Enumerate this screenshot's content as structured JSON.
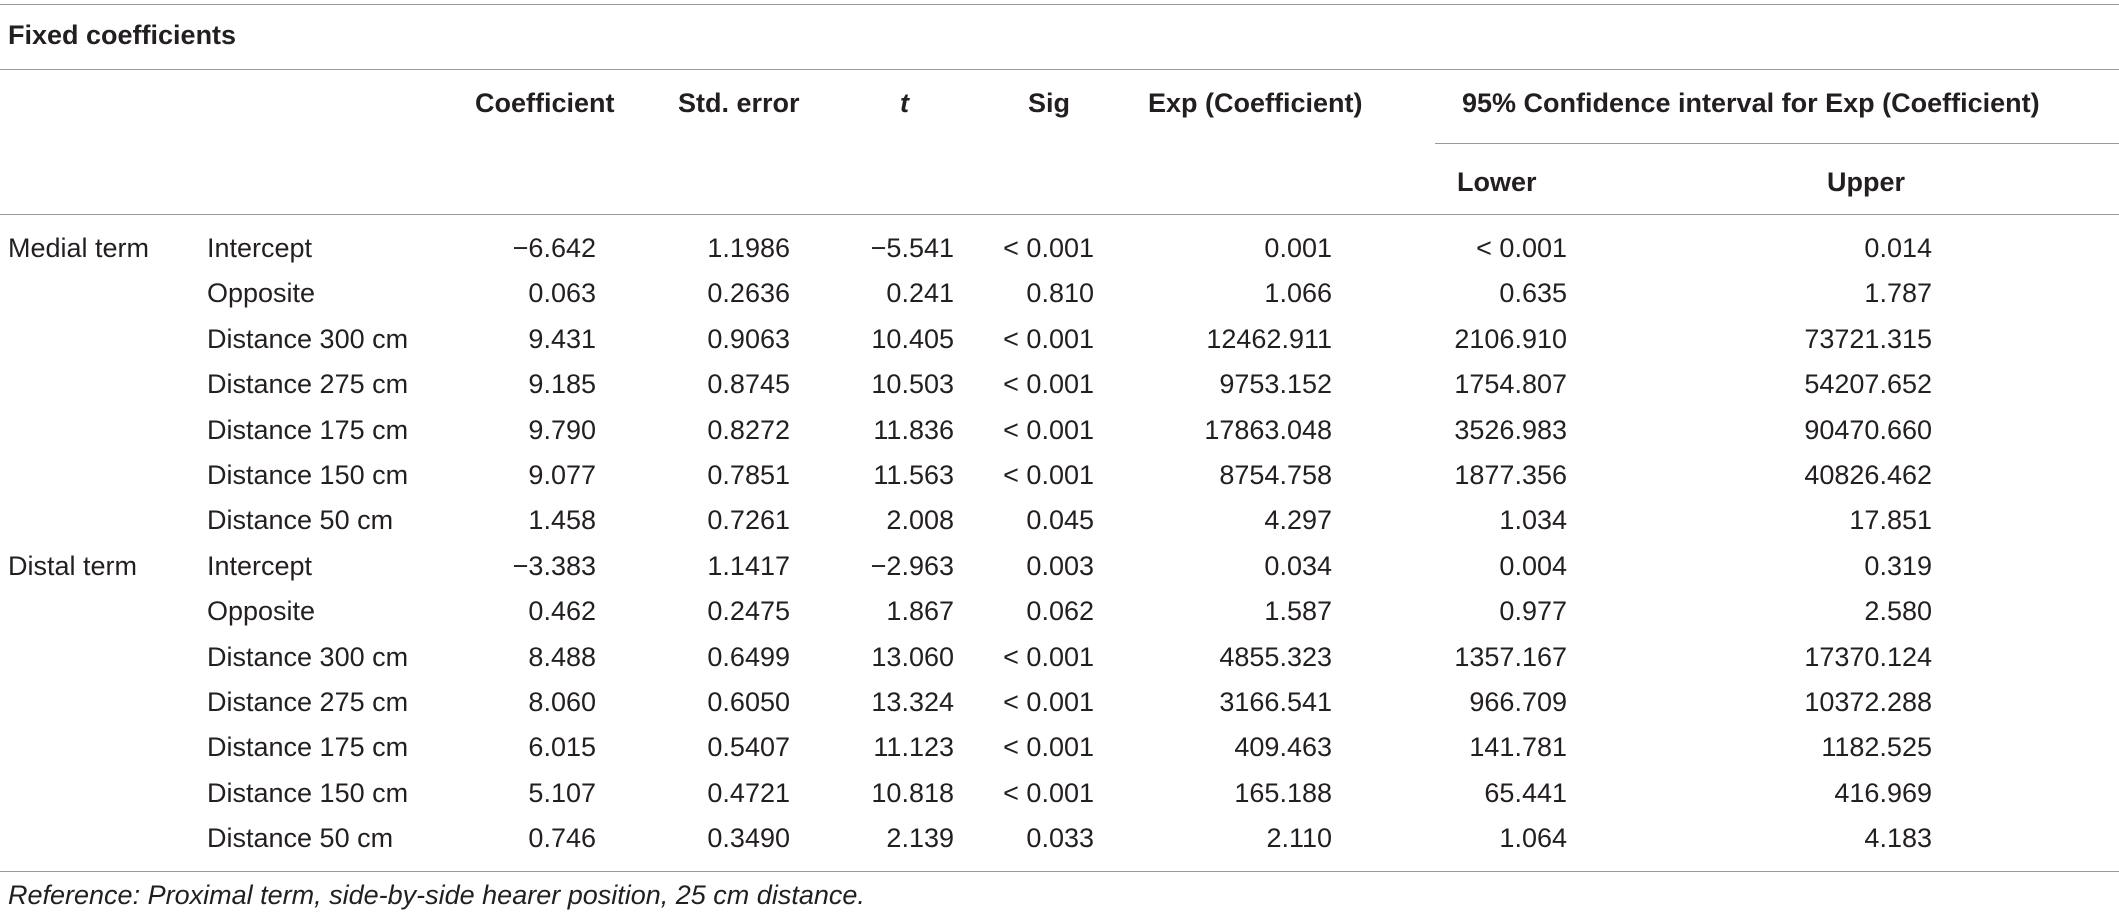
{
  "table": {
    "caption": "Fixed coefficients",
    "headers": {
      "coefficient": "Coefficient",
      "std_error": "Std. error",
      "t": "t",
      "sig": "Sig",
      "exp_coef": "Exp (Coefficient)",
      "ci": "95% Confidence interval for Exp (Coefficient)",
      "lower": "Lower",
      "upper": "Upper"
    },
    "rows": [
      {
        "group": "Medial term",
        "term": "Intercept",
        "coef": "−6.642",
        "se": "1.1986",
        "t": "−5.541",
        "sig": "< 0.001",
        "exp": "0.001",
        "lower": "< 0.001",
        "upper": "0.014"
      },
      {
        "group": "",
        "term": "Opposite",
        "coef": "0.063",
        "se": "0.2636",
        "t": "0.241",
        "sig": "0.810",
        "exp": "1.066",
        "lower": "0.635",
        "upper": "1.787"
      },
      {
        "group": "",
        "term": "Distance 300 cm",
        "coef": "9.431",
        "se": "0.9063",
        "t": "10.405",
        "sig": "< 0.001",
        "exp": "12462.911",
        "lower": "2106.910",
        "upper": "73721.315"
      },
      {
        "group": "",
        "term": "Distance 275 cm",
        "coef": "9.185",
        "se": "0.8745",
        "t": "10.503",
        "sig": "< 0.001",
        "exp": "9753.152",
        "lower": "1754.807",
        "upper": "54207.652"
      },
      {
        "group": "",
        "term": "Distance 175 cm",
        "coef": "9.790",
        "se": "0.8272",
        "t": "11.836",
        "sig": "< 0.001",
        "exp": "17863.048",
        "lower": "3526.983",
        "upper": "90470.660"
      },
      {
        "group": "",
        "term": "Distance 150 cm",
        "coef": "9.077",
        "se": "0.7851",
        "t": "11.563",
        "sig": "< 0.001",
        "exp": "8754.758",
        "lower": "1877.356",
        "upper": "40826.462"
      },
      {
        "group": "",
        "term": "Distance 50 cm",
        "coef": "1.458",
        "se": "0.7261",
        "t": "2.008",
        "sig": "0.045",
        "exp": "4.297",
        "lower": "1.034",
        "upper": "17.851"
      },
      {
        "group": "Distal term",
        "term": "Intercept",
        "coef": "−3.383",
        "se": "1.1417",
        "t": "−2.963",
        "sig": "0.003",
        "exp": "0.034",
        "lower": "0.004",
        "upper": "0.319"
      },
      {
        "group": "",
        "term": "Opposite",
        "coef": "0.462",
        "se": "0.2475",
        "t": "1.867",
        "sig": "0.062",
        "exp": "1.587",
        "lower": "0.977",
        "upper": "2.580"
      },
      {
        "group": "",
        "term": "Distance 300 cm",
        "coef": "8.488",
        "se": "0.6499",
        "t": "13.060",
        "sig": "< 0.001",
        "exp": "4855.323",
        "lower": "1357.167",
        "upper": "17370.124"
      },
      {
        "group": "",
        "term": "Distance 275 cm",
        "coef": "8.060",
        "se": "0.6050",
        "t": "13.324",
        "sig": "< 0.001",
        "exp": "3166.541",
        "lower": "966.709",
        "upper": "10372.288"
      },
      {
        "group": "",
        "term": "Distance 175 cm",
        "coef": "6.015",
        "se": "0.5407",
        "t": "11.123",
        "sig": "< 0.001",
        "exp": "409.463",
        "lower": "141.781",
        "upper": "1182.525"
      },
      {
        "group": "",
        "term": "Distance 150 cm",
        "coef": "5.107",
        "se": "0.4721",
        "t": "10.818",
        "sig": "< 0.001",
        "exp": "165.188",
        "lower": "65.441",
        "upper": "416.969"
      },
      {
        "group": "",
        "term": "Distance 50 cm",
        "coef": "0.746",
        "se": "0.3490",
        "t": "2.139",
        "sig": "0.033",
        "exp": "2.110",
        "lower": "1.064",
        "upper": "4.183"
      }
    ],
    "footnote": "Reference: Proximal term, side-by-side hearer position, 25 cm distance."
  }
}
